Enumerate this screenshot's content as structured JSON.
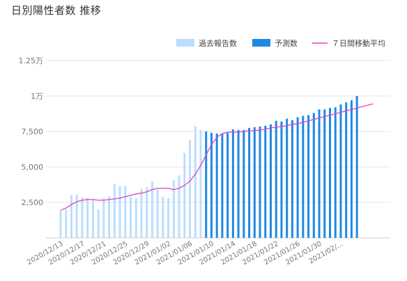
{
  "page": {
    "title": "日別陽性者数 推移"
  },
  "chart_data": {
    "type": "bar",
    "title": "日別陽性者数 推移",
    "ylim": [
      0,
      12500
    ],
    "y_ticks": [
      {
        "value": 2500,
        "label": "2,500"
      },
      {
        "value": 5000,
        "label": "5,000"
      },
      {
        "value": 7500,
        "label": "7,500"
      },
      {
        "value": 10000,
        "label": "1万"
      },
      {
        "value": 12500,
        "label": "1.25万"
      }
    ],
    "x_tick_labels": [
      "2020/12/13",
      "2020/12/17",
      "2020/12/21",
      "2020/12/25",
      "2020/12/29",
      "2021/01/02",
      "2021/01/06",
      "2021/01/10",
      "2021/01/14",
      "2021/01/18",
      "2021/01/22",
      "2021/01/26",
      "2021/01/30",
      "2021/02/..."
    ],
    "grid": true,
    "legend": {
      "placement": "top-right",
      "items": [
        {
          "label": "過去報告数",
          "color": "#bbdefb",
          "kind": "bar"
        },
        {
          "label": "予測数",
          "color": "#1e88e5",
          "kind": "bar"
        },
        {
          "label": "７日間移動平均",
          "color": "#e040c8",
          "kind": "line"
        }
      ]
    },
    "series": [
      {
        "name": "過去報告数",
        "color": "#bbdefb",
        "start_date": "2020/12/13",
        "values": [
          1950,
          2000,
          3000,
          3050,
          2850,
          2800,
          2750,
          2000,
          2800,
          2950,
          3800,
          3650,
          3650,
          2900,
          2800,
          3450,
          3550,
          4000,
          3400,
          2900,
          2800,
          4050,
          4400,
          6000,
          6900,
          7850,
          7600
        ]
      },
      {
        "name": "予測数",
        "color": "#1e88e5",
        "start_date": "2021/01/09",
        "values": [
          7500,
          7400,
          7350,
          7350,
          7400,
          7650,
          7600,
          7600,
          7750,
          7800,
          7850,
          7900,
          8000,
          8250,
          8200,
          8400,
          8300,
          8500,
          8600,
          8650,
          8800,
          9050,
          9050,
          9150,
          9200,
          9400,
          9550,
          9700,
          10000
        ]
      },
      {
        "name": "７日間移動平均",
        "color": "#e040c8",
        "start_date": "2020/12/13",
        "values": [
          1950,
          2100,
          2350,
          2550,
          2650,
          2700,
          2700,
          2650,
          2650,
          2700,
          2750,
          2800,
          2900,
          3000,
          3100,
          3150,
          3250,
          3400,
          3500,
          3500,
          3500,
          3400,
          3500,
          3700,
          4000,
          4500,
          5100,
          5850,
          6550,
          7100,
          7350,
          7450,
          7450,
          7450,
          7500,
          7550,
          7550,
          7600,
          7650,
          7750,
          7800,
          7850,
          7900,
          8000,
          8050,
          8150,
          8250,
          8350,
          8450,
          8550,
          8650,
          8750,
          8850,
          8950,
          9050,
          9150,
          9250,
          9350,
          9450
        ]
      }
    ]
  }
}
